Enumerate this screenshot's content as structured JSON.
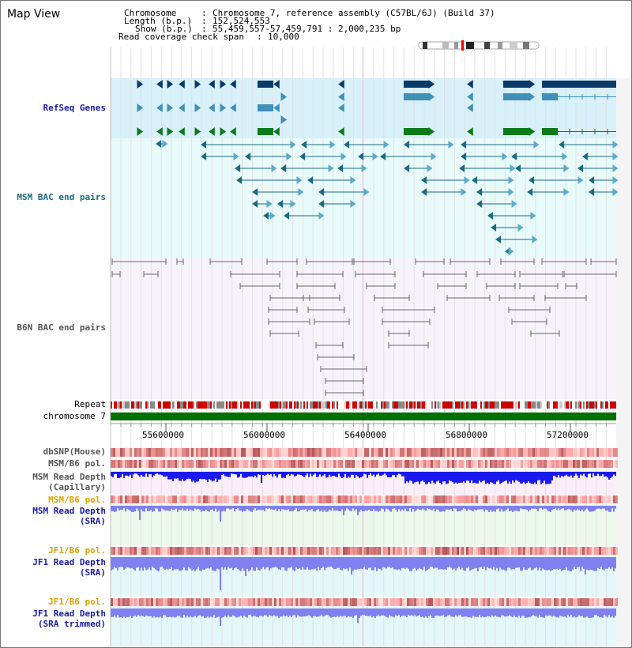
{
  "page": {
    "title": "Map View"
  },
  "header": {
    "chromosome_label": "Chromosome",
    "chromosome_value": "Chromosome 7, reference assembly (C57BL/6J) (Build 37)",
    "length_label": "Length (b.p.)",
    "length_value": "152,524,553",
    "show_label": "Show (b.p.)",
    "show_value": "55,459,557-57,459,791 : 2,000,235 bp",
    "coverage_label": "Read coverage check span",
    "coverage_value": "10,000"
  },
  "tracks": {
    "refseq": "RefSeq Genes",
    "msm_bac": "MSM BAC end pairs",
    "b6n_bac": "B6N BAC end pairs",
    "repeat": "Repeat",
    "chromosome": "chromosome 7",
    "dbsnp": "dbSNP(Mouse)",
    "msm_b6_pol_1": "MSM/B6 pol.",
    "msm_read_depth_cap_1": "MSM Read Depth",
    "msm_read_depth_cap_2": "(Capillary)",
    "msm_b6_pol_2": "MSM/B6 pol.",
    "msm_read_depth_sra_1": "MSM Read Depth",
    "msm_read_depth_sra_2": "(SRA)",
    "jf1_b6_pol_1": "JF1/B6 pol.",
    "jf1_read_depth_sra_1": "JF1 Read Depth",
    "jf1_read_depth_sra_2": "(SRA)",
    "jf1_b6_pol_2": "JF1/B6 pol.",
    "jf1_read_depth_trim_1": "JF1 Read Depth",
    "jf1_read_depth_trim_2": "(SRA trimmed)"
  },
  "ruler": {
    "ticks": [
      "55600000",
      "56000000",
      "56400000",
      "56800000",
      "57200000"
    ]
  },
  "colors": {
    "refseq_bg": "#d8f0fa",
    "bac_bg": "#e8fafa",
    "b6n_bg": "#f6f4fa",
    "gene_dark": "#0a3a6a",
    "gene_mid": "#4090b8",
    "gene_green": "#0a7a1a",
    "bac_teal": "#1a6a80",
    "bac_gray": "#666666",
    "chrom_green": "#007000",
    "depth_blue": "#1a1af0",
    "depth_light": "#8080f0"
  }
}
